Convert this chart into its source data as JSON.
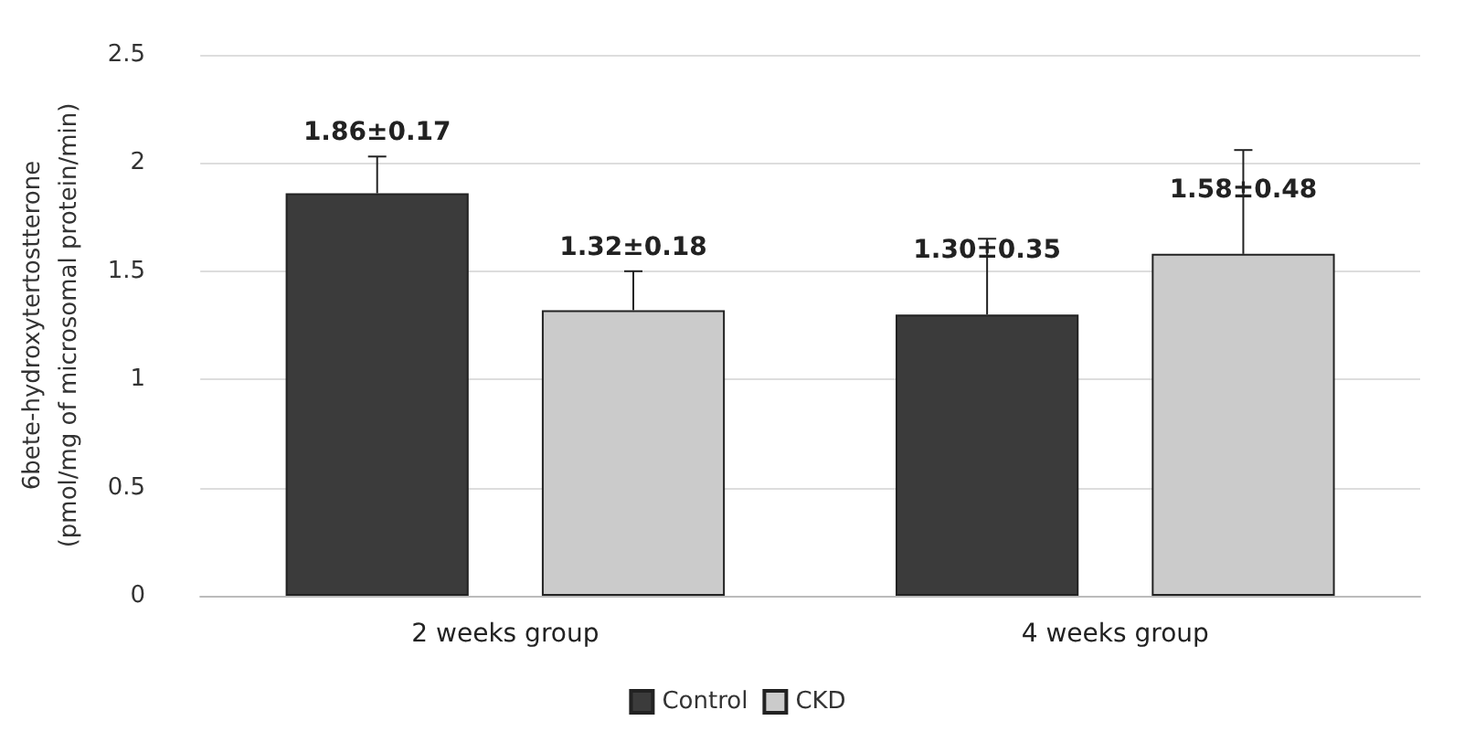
{
  "chart_data": {
    "type": "bar",
    "ylabel": "6bete-hydroxytertostterone\n(pmol/mg of microsomal protein/min)",
    "categories": [
      "2 weeks group",
      "4 weeks group"
    ],
    "series": [
      {
        "name": "Control",
        "color": "#3b3b3b",
        "values": [
          1.86,
          1.3
        ],
        "errors": [
          [
            1.86,
            2.03
          ],
          [
            1.3,
            1.65
          ]
        ],
        "value_labels": [
          "1.86±0.17",
          "1.30±0.35"
        ]
      },
      {
        "name": "CKD",
        "color": "#cbcbcb",
        "values": [
          1.32,
          1.58
        ],
        "errors": [
          [
            1.32,
            1.5
          ],
          [
            1.58,
            2.06
          ]
        ],
        "value_labels": [
          "1.32±0.18",
          "1.58±0.48"
        ]
      }
    ],
    "ylim": [
      0,
      2.5
    ],
    "yticks": [
      0,
      0.5,
      1,
      1.5,
      2,
      2.5
    ],
    "grid": "y",
    "legend": "bottom"
  }
}
